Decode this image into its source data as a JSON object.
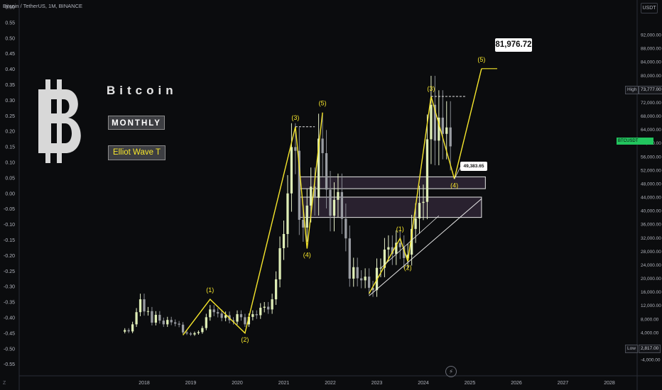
{
  "header": {
    "symbol": "Bitcoin / TetherUS, 1M, BINANCE",
    "currency": "USDT"
  },
  "overlay": {
    "logo": "bitcoin-logo",
    "title": "Bitcoin",
    "timeframe_label": "MONTHLY",
    "method_label": "Elliot Wave T",
    "target_price": "81,976.72",
    "wave4_price": "49,383.65"
  },
  "price_scale": {
    "high_label": "High",
    "high_value": "73,777.00",
    "low_label": "Low",
    "low_value": "2,817.00",
    "current_tag": "BTCUSDT"
  },
  "footer": {
    "corner": "Z"
  },
  "chart_data": {
    "type": "candlestick",
    "title": "Bitcoin / TetherUS, 1M, BINANCE",
    "x_ticks": [
      "2018",
      "2019",
      "2020",
      "2021",
      "2022",
      "2023",
      "2024",
      "2025",
      "2026",
      "2027",
      "2028"
    ],
    "left_ticks": [
      "0.60",
      "0.55",
      "0.50",
      "0.45",
      "0.40",
      "0.35",
      "0.30",
      "0.25",
      "0.20",
      "0.15",
      "0.10",
      "0.05",
      "0.00",
      "-0.05",
      "-0.10",
      "-0.15",
      "-0.20",
      "-0.25",
      "-0.30",
      "-0.35",
      "-0.40",
      "-0.45",
      "-0.50",
      "-0.55"
    ],
    "right_ticks": [
      "92,000.00",
      "88,000.00",
      "84,000.00",
      "80,000.00",
      "76,000.00",
      "72,000.00",
      "68,000.00",
      "64,000.00",
      "60,000.00",
      "56,000.00",
      "52,000.00",
      "48,000.00",
      "44,000.00",
      "40,000.00",
      "36,000.00",
      "32,000.00",
      "28,000.00",
      "24,000.00",
      "20,000.00",
      "16,000.00",
      "12,000.00",
      "8,000.00",
      "4,000.00",
      "0.00",
      "-4,000.00"
    ],
    "price_range": [
      -4000,
      92000
    ],
    "monthly_closes": {
      "2017-08": 4700,
      "2017-09": 4300,
      "2017-10": 6400,
      "2017-11": 10000,
      "2017-12": 13800,
      "2018-01": 10200,
      "2018-02": 10300,
      "2018-03": 6900,
      "2018-04": 9200,
      "2018-05": 7500,
      "2018-06": 6400,
      "2018-07": 7700,
      "2018-08": 7000,
      "2018-09": 6600,
      "2018-10": 6300,
      "2018-11": 4000,
      "2018-12": 3700,
      "2019-01": 3400,
      "2019-02": 3800,
      "2019-03": 4100,
      "2019-04": 5300,
      "2019-05": 8500,
      "2019-06": 10800,
      "2019-07": 10000,
      "2019-08": 9600,
      "2019-09": 8300,
      "2019-10": 9100,
      "2019-11": 7600,
      "2019-12": 7200,
      "2020-01": 9400,
      "2020-02": 8500,
      "2020-03": 6400,
      "2020-04": 8600,
      "2020-05": 9400,
      "2020-06": 9100,
      "2020-07": 11300,
      "2020-08": 11600,
      "2020-09": 10800,
      "2020-10": 13800,
      "2020-11": 19700,
      "2020-12": 28900,
      "2021-01": 33100,
      "2021-02": 45100,
      "2021-03": 58800,
      "2021-04": 57700,
      "2021-05": 37300,
      "2021-06": 35000,
      "2021-07": 41500,
      "2021-08": 47100,
      "2021-09": 43800,
      "2021-10": 61300,
      "2021-11": 57000,
      "2021-12": 46200,
      "2022-01": 38500,
      "2022-02": 43200,
      "2022-03": 45500,
      "2022-04": 37600,
      "2022-05": 31800,
      "2022-06": 19900,
      "2022-07": 23300,
      "2022-08": 20000,
      "2022-09": 19400,
      "2022-10": 20500,
      "2022-11": 17200,
      "2022-12": 16500,
      "2023-01": 23100,
      "2023-02": 23100,
      "2023-03": 28500,
      "2023-04": 29200,
      "2023-05": 27200,
      "2023-06": 30500,
      "2023-07": 29200,
      "2023-08": 26000,
      "2023-09": 27000,
      "2023-10": 34600,
      "2023-11": 37700,
      "2023-12": 42300,
      "2024-01": 42600,
      "2024-02": 61100,
      "2024-03": 71300,
      "2024-04": 60700,
      "2024-05": 67500,
      "2024-06": 62700,
      "2024-07": 64600,
      "2024-08": 59000
    },
    "wave_labels": [
      {
        "label": "(1)",
        "date": "2019-06",
        "price": 13800
      },
      {
        "label": "(2)",
        "date": "2020-03",
        "price": 3800
      },
      {
        "label": "(3)",
        "date": "2021-04",
        "price": 64800
      },
      {
        "label": "(4)",
        "date": "2021-07",
        "price": 28800
      },
      {
        "label": "(5)",
        "date": "2021-11",
        "price": 69000
      },
      {
        "label": "(1)",
        "date": "2023-07",
        "price": 31800
      },
      {
        "label": "(2)",
        "date": "2023-09",
        "price": 25000
      },
      {
        "label": "(3)",
        "date": "2024-03",
        "price": 73777
      },
      {
        "label": "(4)",
        "date": "2024-09",
        "price": 49383.65
      },
      {
        "label": "(5)",
        "date": "2025-04",
        "price": 81976.72
      }
    ],
    "zones": [
      {
        "from": "2021-05",
        "to": "2025-05",
        "low": 46500,
        "high": 50000
      },
      {
        "from": "2021-05",
        "to": "2025-04",
        "low": 38000,
        "high": 44000
      }
    ],
    "annotations": [
      "81,976.72",
      "49,383.65"
    ]
  }
}
